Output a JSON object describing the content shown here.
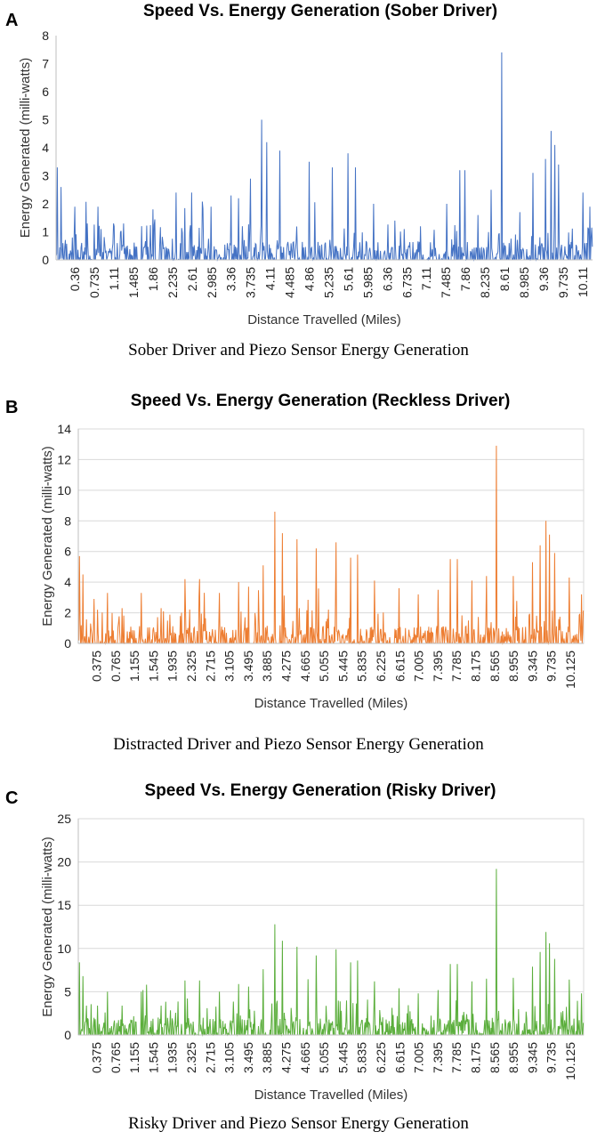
{
  "panels": [
    {
      "letter": "A",
      "caption": "Sober Driver and Piezo Sensor Energy Generation",
      "color": "#4472C4"
    },
    {
      "letter": "B",
      "caption": "Distracted Driver and Piezo Sensor Energy Generation",
      "color": "#ED7D31"
    },
    {
      "letter": "C",
      "caption": "Risky Driver and Piezo Sensor Energy Generation",
      "color": "#5BAE3C"
    }
  ],
  "chart_data": [
    {
      "type": "line",
      "title": "Speed Vs. Energy Generation (Sober Driver)",
      "xlabel": "Distance Travelled  (Miles)",
      "ylabel": "Energy Generated (milli-watts)",
      "ylim": [
        0,
        8
      ],
      "yticks": [
        "0",
        "1",
        "2",
        "3",
        "4",
        "5",
        "6",
        "7",
        "8"
      ],
      "grid": false,
      "categories": [
        "0.36",
        "0.735",
        "1.11",
        "1.485",
        "1.86",
        "2.235",
        "2.61",
        "2.985",
        "3.36",
        "3.735",
        "4.11",
        "4.485",
        "4.86",
        "5.235",
        "5.61",
        "5.985",
        "6.36",
        "6.735",
        "7.11",
        "7.485",
        "7.86",
        "8.235",
        "8.61",
        "8.985",
        "9.36",
        "9.735",
        "10.11"
      ],
      "x_range": [
        0.0,
        10.3
      ],
      "peaks": [
        [
          0.03,
          3.3
        ],
        [
          0.1,
          2.6
        ],
        [
          0.36,
          1.9
        ],
        [
          0.6,
          1.3
        ],
        [
          0.8,
          1.9
        ],
        [
          1.1,
          1.3
        ],
        [
          1.3,
          1.3
        ],
        [
          1.86,
          1.8
        ],
        [
          2.3,
          2.4
        ],
        [
          2.6,
          2.4
        ],
        [
          2.98,
          1.9
        ],
        [
          3.36,
          2.3
        ],
        [
          3.5,
          2.2
        ],
        [
          3.73,
          2.9
        ],
        [
          3.95,
          5.0
        ],
        [
          4.05,
          4.2
        ],
        [
          4.3,
          3.9
        ],
        [
          4.86,
          3.5
        ],
        [
          5.3,
          3.3
        ],
        [
          5.6,
          3.8
        ],
        [
          5.75,
          3.3
        ],
        [
          6.1,
          2.0
        ],
        [
          6.5,
          1.4
        ],
        [
          7.0,
          1.2
        ],
        [
          7.5,
          2.0
        ],
        [
          7.75,
          3.2
        ],
        [
          7.85,
          3.2
        ],
        [
          8.1,
          1.6
        ],
        [
          8.35,
          2.5
        ],
        [
          8.55,
          7.4
        ],
        [
          8.9,
          1.7
        ],
        [
          9.15,
          3.1
        ],
        [
          9.4,
          3.6
        ],
        [
          9.5,
          4.6
        ],
        [
          9.57,
          4.1
        ],
        [
          9.65,
          3.4
        ],
        [
          10.11,
          2.4
        ],
        [
          10.25,
          1.9
        ]
      ]
    },
    {
      "type": "line",
      "title": "Speed Vs. Energy Generation (Reckless Driver)",
      "xlabel": "Distance Travelled  (Miles)",
      "ylabel": "Energy Generated (milli-watts)",
      "ylim": [
        0,
        14
      ],
      "yticks": [
        "0",
        "2",
        "4",
        "6",
        "8",
        "10",
        "12",
        "14"
      ],
      "grid": true,
      "categories": [
        "0.375",
        "0.765",
        "1.155",
        "1.545",
        "1.935",
        "2.325",
        "2.715",
        "3.105",
        "3.495",
        "3.885",
        "4.275",
        "4.665",
        "5.055",
        "5.445",
        "5.835",
        "6.225",
        "6.615",
        "7.005",
        "7.395",
        "7.785",
        "8.175",
        "8.565",
        "8.955",
        "9.345",
        "9.735",
        "10.125"
      ],
      "x_range": [
        0.0,
        10.4
      ],
      "peaks": [
        [
          0.03,
          5.7
        ],
        [
          0.1,
          4.5
        ],
        [
          0.4,
          2.2
        ],
        [
          0.6,
          3.3
        ],
        [
          0.9,
          2.3
        ],
        [
          1.3,
          3.3
        ],
        [
          1.7,
          2.3
        ],
        [
          2.2,
          4.2
        ],
        [
          2.5,
          4.2
        ],
        [
          2.9,
          3.3
        ],
        [
          3.3,
          4.0
        ],
        [
          3.5,
          3.7
        ],
        [
          3.8,
          5.1
        ],
        [
          4.05,
          8.6
        ],
        [
          4.2,
          7.2
        ],
        [
          4.5,
          6.8
        ],
        [
          4.9,
          6.2
        ],
        [
          5.3,
          6.6
        ],
        [
          5.6,
          5.6
        ],
        [
          5.75,
          5.8
        ],
        [
          6.1,
          4.1
        ],
        [
          6.6,
          3.6
        ],
        [
          7.0,
          3.2
        ],
        [
          7.4,
          3.5
        ],
        [
          7.65,
          5.5
        ],
        [
          7.8,
          5.5
        ],
        [
          8.1,
          4.1
        ],
        [
          8.4,
          4.4
        ],
        [
          8.6,
          12.9
        ],
        [
          8.95,
          4.4
        ],
        [
          9.35,
          5.3
        ],
        [
          9.5,
          6.4
        ],
        [
          9.62,
          8.0
        ],
        [
          9.7,
          7.1
        ],
        [
          9.8,
          5.9
        ],
        [
          10.1,
          4.3
        ],
        [
          10.35,
          3.2
        ]
      ]
    },
    {
      "type": "line",
      "title": "Speed Vs. Energy Generation (Risky Driver)",
      "xlabel": "Distance Travelled  (Miles)",
      "ylabel": "Energy Generated (milli-watts)",
      "ylim": [
        0,
        25
      ],
      "yticks": [
        "0",
        "5",
        "10",
        "15",
        "20",
        "25"
      ],
      "grid": true,
      "categories": [
        "0.375",
        "0.765",
        "1.155",
        "1.545",
        "1.935",
        "2.325",
        "2.715",
        "3.105",
        "3.495",
        "3.885",
        "4.275",
        "4.665",
        "5.055",
        "5.445",
        "5.835",
        "6.225",
        "6.615",
        "7.005",
        "7.395",
        "7.785",
        "8.175",
        "8.565",
        "8.955",
        "9.345",
        "9.735",
        "10.125"
      ],
      "x_range": [
        0.0,
        10.4
      ],
      "peaks": [
        [
          0.03,
          8.4
        ],
        [
          0.1,
          6.8
        ],
        [
          0.4,
          3.4
        ],
        [
          0.6,
          5.0
        ],
        [
          0.9,
          3.4
        ],
        [
          1.3,
          5.0
        ],
        [
          1.7,
          3.4
        ],
        [
          2.2,
          6.3
        ],
        [
          2.5,
          6.3
        ],
        [
          2.9,
          5.0
        ],
        [
          3.3,
          5.9
        ],
        [
          3.5,
          5.6
        ],
        [
          3.8,
          7.6
        ],
        [
          4.05,
          12.8
        ],
        [
          4.2,
          10.9
        ],
        [
          4.5,
          10.2
        ],
        [
          4.9,
          9.2
        ],
        [
          5.3,
          9.9
        ],
        [
          5.6,
          8.4
        ],
        [
          5.75,
          8.6
        ],
        [
          6.1,
          6.2
        ],
        [
          6.6,
          5.4
        ],
        [
          7.0,
          4.8
        ],
        [
          7.4,
          5.2
        ],
        [
          7.65,
          8.2
        ],
        [
          7.8,
          8.2
        ],
        [
          8.1,
          6.2
        ],
        [
          8.4,
          6.5
        ],
        [
          8.6,
          19.2
        ],
        [
          8.95,
          6.6
        ],
        [
          9.35,
          7.9
        ],
        [
          9.5,
          9.6
        ],
        [
          9.62,
          11.9
        ],
        [
          9.7,
          10.6
        ],
        [
          9.8,
          8.8
        ],
        [
          10.1,
          6.4
        ],
        [
          10.35,
          4.8
        ]
      ]
    }
  ]
}
